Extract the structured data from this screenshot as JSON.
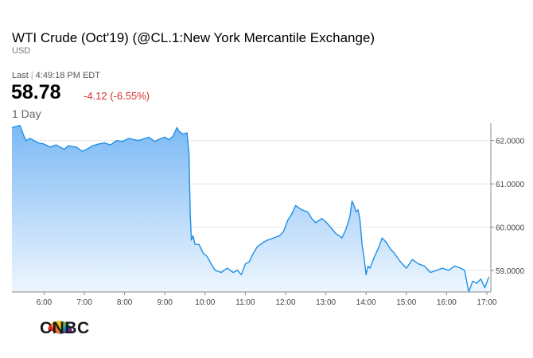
{
  "header": {
    "title": "WTI Crude (Oct'19) (@CL.1:New York Mercantile Exchange)",
    "currency": "USD",
    "last_label": "Last",
    "last_time": "4:49:18 PM EDT",
    "price": "58.78",
    "change": "-4.12 (-6.55%)",
    "range_label": "1 Day"
  },
  "brand": {
    "name": "CNBC",
    "logo_icon": "peacock-icon"
  },
  "colors": {
    "line": "#1e90e6",
    "area_top": "#7cb9f5",
    "area_bottom": "#eef6fe",
    "negative": "#d2322d"
  },
  "chart_data": {
    "type": "area",
    "x_unit": "hour",
    "x_ticks": [
      "6:00",
      "7:00",
      "8:00",
      "9:00",
      "10:00",
      "11:00",
      "12:00",
      "13:00",
      "14:00",
      "15:00",
      "16:00",
      "17:00"
    ],
    "y_ticks": [
      "62.0000",
      "61.0000",
      "60.0000",
      "59.0000"
    ],
    "xlim": [
      5.2,
      17.1
    ],
    "ylim": [
      58.5,
      62.4
    ],
    "grid": true,
    "series": [
      {
        "x": [
          5.2,
          5.4,
          5.5,
          5.55,
          5.65,
          5.75,
          5.85,
          6.0,
          6.15,
          6.3,
          6.5,
          6.6,
          6.8,
          6.95,
          7.1,
          7.2,
          7.35,
          7.5,
          7.65,
          7.8,
          7.95,
          8.1,
          8.25,
          8.35,
          8.5,
          8.6,
          8.75,
          8.9,
          9.0,
          9.1,
          9.2,
          9.3,
          9.35,
          9.45,
          9.55,
          9.6,
          9.63,
          9.66,
          9.7,
          9.75,
          9.85,
          9.95,
          10.05,
          10.15,
          10.25,
          10.4,
          10.55,
          10.7,
          10.8,
          10.9,
          11.0,
          11.1,
          11.2,
          11.3,
          11.45,
          11.55,
          11.7,
          11.85,
          11.95,
          12.05,
          12.15,
          12.25,
          12.4,
          12.55,
          12.65,
          12.75,
          12.9,
          13.0,
          13.1,
          13.25,
          13.4,
          13.5,
          13.6,
          13.65,
          13.7,
          13.75,
          13.8,
          13.85,
          13.9,
          13.95,
          14.0,
          14.05,
          14.1,
          14.2,
          14.3,
          14.4,
          14.5,
          14.6,
          14.7,
          14.85,
          15.0,
          15.15,
          15.3,
          15.45,
          15.6,
          15.75,
          15.9,
          16.05,
          16.2,
          16.35,
          16.45,
          16.55,
          16.65,
          16.75,
          16.85,
          16.95,
          17.05
        ],
        "y": [
          62.3,
          62.35,
          62.1,
          62.0,
          62.05,
          62.0,
          61.95,
          61.92,
          61.85,
          61.9,
          61.8,
          61.88,
          61.85,
          61.75,
          61.82,
          61.88,
          61.92,
          61.95,
          61.9,
          62.0,
          61.98,
          62.05,
          62.02,
          62.0,
          62.05,
          62.08,
          61.98,
          62.05,
          62.08,
          62.02,
          62.1,
          62.3,
          62.22,
          62.15,
          62.18,
          61.7,
          60.3,
          59.7,
          59.8,
          59.6,
          59.6,
          59.4,
          59.32,
          59.15,
          59.0,
          58.95,
          59.05,
          58.95,
          59.0,
          58.9,
          59.15,
          59.2,
          59.4,
          59.55,
          59.65,
          59.7,
          59.75,
          59.8,
          59.9,
          60.15,
          60.3,
          60.5,
          60.4,
          60.35,
          60.2,
          60.1,
          60.2,
          60.12,
          60.02,
          59.85,
          59.75,
          59.95,
          60.25,
          60.6,
          60.5,
          60.35,
          60.4,
          60.15,
          59.6,
          59.3,
          58.9,
          59.1,
          59.05,
          59.3,
          59.5,
          59.75,
          59.65,
          59.5,
          59.4,
          59.2,
          59.05,
          59.25,
          59.15,
          59.1,
          58.95,
          59.0,
          59.05,
          59.0,
          59.1,
          59.05,
          59.0,
          58.5,
          58.75,
          58.7,
          58.8,
          58.6,
          58.85
        ]
      }
    ]
  }
}
